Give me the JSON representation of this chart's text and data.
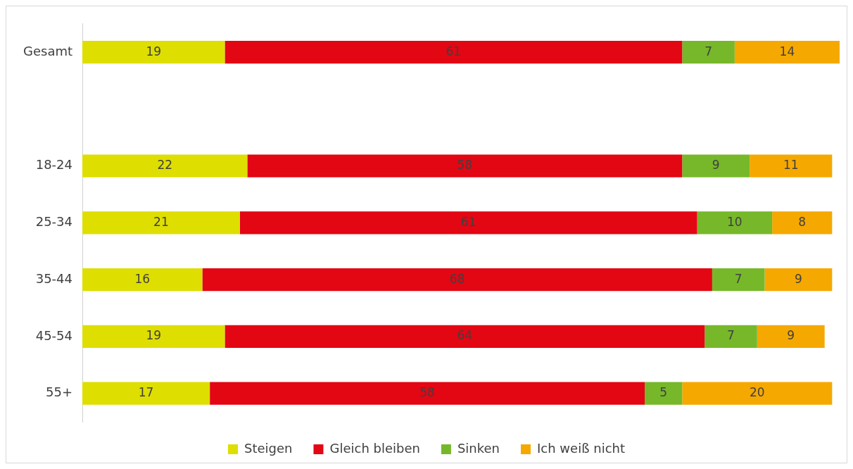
{
  "chart_data": {
    "type": "bar",
    "orientation": "horizontal",
    "stacked": true,
    "data_labels": true,
    "legend": "bottom",
    "categories": [
      "Gesamt",
      null,
      "18-24",
      "25-34",
      "35-44",
      "45-54",
      "55+"
    ],
    "series": [
      {
        "name": "Steigen",
        "color": "#dede00",
        "values": [
          19,
          null,
          22,
          21,
          16,
          19,
          17
        ]
      },
      {
        "name": "Gleich bleiben",
        "color": "#e30613",
        "values": [
          61,
          null,
          58,
          61,
          68,
          64,
          58
        ]
      },
      {
        "name": "Sinken",
        "color": "#76b82a",
        "values": [
          7,
          null,
          9,
          10,
          7,
          7,
          5
        ]
      },
      {
        "name": "Ich weiß nicht",
        "color": "#f5a800",
        "values": [
          14,
          null,
          11,
          8,
          9,
          9,
          20
        ]
      }
    ]
  }
}
